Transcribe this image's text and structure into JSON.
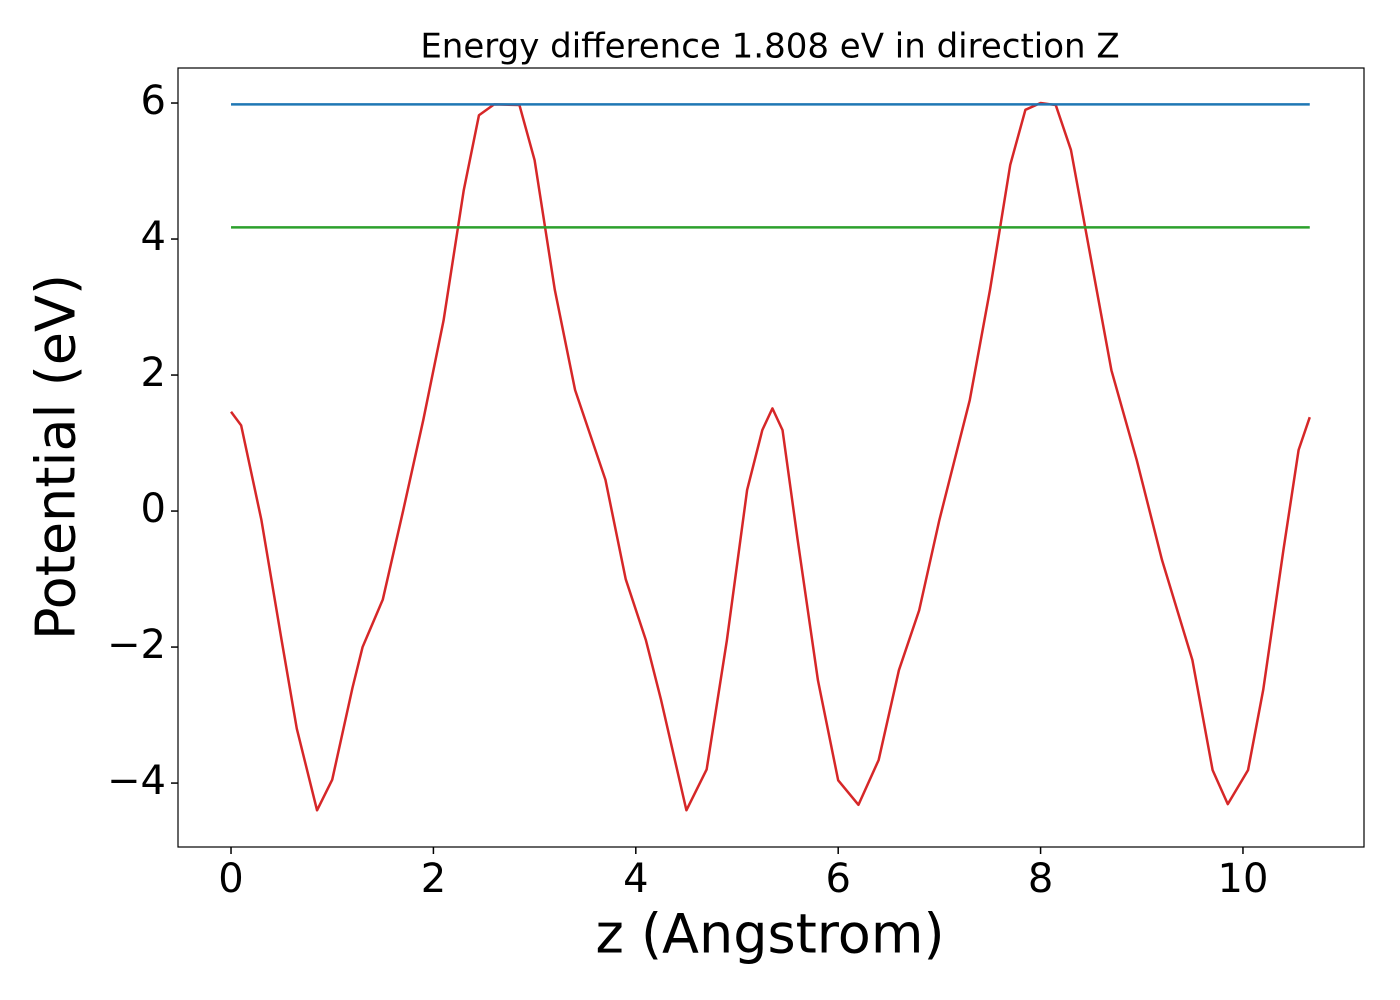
{
  "chart_data": {
    "type": "line",
    "title": "Energy difference 1.808 eV in direction Z",
    "xlabel": "z (Angstrom)",
    "ylabel": "Potential (eV)",
    "xlim": [
      -0.524,
      11.196
    ],
    "ylim": [
      -4.94,
      6.515
    ],
    "xticks": [
      0,
      2,
      4,
      6,
      8,
      10
    ],
    "yticks": [
      {
        "value": -4,
        "label": "−4"
      },
      {
        "value": -2,
        "label": "−2"
      },
      0,
      2,
      4,
      6
    ],
    "grid": false,
    "series": [
      {
        "color": "#d62728",
        "x": [
          0,
          0.1,
          0.3,
          0.5,
          0.65,
          0.85,
          1.0,
          1.2,
          1.3,
          1.5,
          1.7,
          1.9,
          2.1,
          2.3,
          2.45,
          2.6,
          2.85,
          3.0,
          3.2,
          3.4,
          3.7,
          3.9,
          4.1,
          4.25,
          4.5,
          4.7,
          4.9,
          5.1,
          5.25,
          5.35,
          5.45,
          5.6,
          5.8,
          6.0,
          6.2,
          6.4,
          6.6,
          6.8,
          7.0,
          7.3,
          7.5,
          7.7,
          7.85,
          8.0,
          8.15,
          8.3,
          8.5,
          8.7,
          8.95,
          9.2,
          9.5,
          9.7,
          9.85,
          10.05,
          10.2,
          10.4,
          10.55,
          10.66
        ],
        "values": [
          1.46,
          1.26,
          -0.13,
          -1.9,
          -3.2,
          -4.4,
          -3.95,
          -2.6,
          -2.0,
          -1.3,
          0.0,
          1.34,
          2.8,
          4.72,
          5.82,
          5.98,
          5.97,
          5.16,
          3.25,
          1.78,
          0.46,
          -1.0,
          -1.9,
          -2.78,
          -4.4,
          -3.8,
          -1.9,
          0.31,
          1.19,
          1.51,
          1.19,
          -0.43,
          -2.49,
          -3.96,
          -4.32,
          -3.66,
          -2.34,
          -1.46,
          -0.13,
          1.63,
          3.25,
          5.09,
          5.9,
          6.0,
          5.97,
          5.31,
          3.69,
          2.07,
          0.75,
          -0.72,
          -2.19,
          -3.81,
          -4.31,
          -3.81,
          -2.63,
          -0.57,
          0.9,
          1.38
        ]
      },
      {
        "color": "#1f77b4",
        "x": [
          0,
          10.66
        ],
        "values": [
          5.98,
          5.98
        ]
      },
      {
        "color": "#2ca02c",
        "x": [
          0,
          10.66
        ],
        "values": [
          4.172,
          4.172
        ]
      }
    ]
  }
}
